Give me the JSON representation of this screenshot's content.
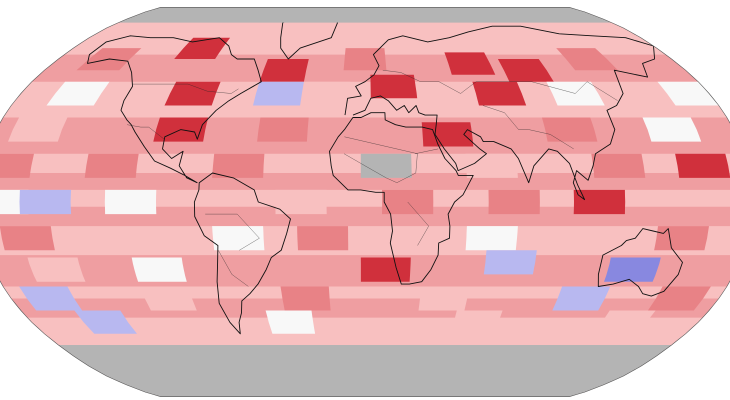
{
  "map": {
    "projection": "robinson",
    "background_color": "#ffffff",
    "no_data_color": "#b4b4b4",
    "colors": {
      "much_warmer": "#d0303c",
      "warmer": "#e88286",
      "slightly_warmer": "#f8c0c0",
      "near_average": "#f8f8f8",
      "cooler": "#b8b8f0",
      "much_cooler": "#8888e0"
    },
    "cells": [
      {
        "lat": 60,
        "lon": -150,
        "level": "warmer"
      },
      {
        "lat": 65,
        "lon": -100,
        "level": "much_warmer"
      },
      {
        "lat": 55,
        "lon": -45,
        "level": "much_warmer"
      },
      {
        "lat": 60,
        "lon": 0,
        "level": "warmer"
      },
      {
        "lat": 58,
        "lon": 60,
        "level": "much_warmer"
      },
      {
        "lat": 55,
        "lon": 90,
        "level": "much_warmer"
      },
      {
        "lat": 60,
        "lon": 130,
        "level": "warmer"
      },
      {
        "lat": 45,
        "lon": -150,
        "level": "near_average"
      },
      {
        "lat": 45,
        "lon": -90,
        "level": "much_warmer"
      },
      {
        "lat": 45,
        "lon": -20,
        "level": "slightly_warmer"
      },
      {
        "lat": 48,
        "lon": 15,
        "level": "much_warmer"
      },
      {
        "lat": 45,
        "lon": 70,
        "level": "much_warmer"
      },
      {
        "lat": 45,
        "lon": 110,
        "level": "near_average"
      },
      {
        "lat": 45,
        "lon": 170,
        "level": "near_average"
      },
      {
        "lat": 45,
        "lon": -45,
        "level": "cooler"
      },
      {
        "lat": 30,
        "lon": -160,
        "level": "slightly_warmer"
      },
      {
        "lat": 30,
        "lon": -90,
        "level": "much_warmer"
      },
      {
        "lat": 30,
        "lon": -40,
        "level": "warmer"
      },
      {
        "lat": 28,
        "lon": 40,
        "level": "much_warmer"
      },
      {
        "lat": 30,
        "lon": 100,
        "level": "warmer"
      },
      {
        "lat": 30,
        "lon": 150,
        "level": "near_average"
      },
      {
        "lat": 15,
        "lon": -170,
        "level": "warmer"
      },
      {
        "lat": 15,
        "lon": -120,
        "level": "warmer"
      },
      {
        "lat": 15,
        "lon": -60,
        "level": "warmer"
      },
      {
        "lat": 15,
        "lon": 10,
        "level": "no_data"
      },
      {
        "lat": 15,
        "lon": 60,
        "level": "slightly_warmer"
      },
      {
        "lat": 15,
        "lon": 120,
        "level": "warmer"
      },
      {
        "lat": 15,
        "lon": 160,
        "level": "much_warmer"
      },
      {
        "lat": 0,
        "lon": -170,
        "level": "near_average"
      },
      {
        "lat": 0,
        "lon": -150,
        "level": "cooler"
      },
      {
        "lat": 0,
        "lon": -110,
        "level": "near_average"
      },
      {
        "lat": 0,
        "lon": -30,
        "level": "slightly_warmer"
      },
      {
        "lat": 0,
        "lon": 20,
        "level": "warmer"
      },
      {
        "lat": 0,
        "lon": 70,
        "level": "warmer"
      },
      {
        "lat": 0,
        "lon": 110,
        "level": "much_warmer"
      },
      {
        "lat": -15,
        "lon": -160,
        "level": "warmer"
      },
      {
        "lat": -15,
        "lon": -60,
        "level": "near_average"
      },
      {
        "lat": -15,
        "lon": -20,
        "level": "warmer"
      },
      {
        "lat": -15,
        "lon": 60,
        "level": "near_average"
      },
      {
        "lat": -15,
        "lon": 150,
        "level": "warmer"
      },
      {
        "lat": -28,
        "lon": -150,
        "level": "slightly_warmer"
      },
      {
        "lat": -28,
        "lon": -100,
        "level": "near_average"
      },
      {
        "lat": -28,
        "lon": 10,
        "level": "much_warmer"
      },
      {
        "lat": -25,
        "lon": 70,
        "level": "cooler"
      },
      {
        "lat": -28,
        "lon": 130,
        "level": "much_cooler"
      },
      {
        "lat": -40,
        "lon": -160,
        "level": "cooler"
      },
      {
        "lat": -40,
        "lon": -100,
        "level": "slightly_warmer"
      },
      {
        "lat": -40,
        "lon": -30,
        "level": "warmer"
      },
      {
        "lat": -40,
        "lon": 40,
        "level": "slightly_warmer"
      },
      {
        "lat": -40,
        "lon": 110,
        "level": "cooler"
      },
      {
        "lat": -40,
        "lon": 160,
        "level": "warmer"
      },
      {
        "lat": -50,
        "lon": -140,
        "level": "cooler"
      },
      {
        "lat": -50,
        "lon": -40,
        "level": "near_average"
      },
      {
        "lat": -50,
        "lon": 60,
        "level": "slightly_warmer"
      },
      {
        "lat": -50,
        "lon": 140,
        "level": "slightly_warmer"
      }
    ]
  }
}
